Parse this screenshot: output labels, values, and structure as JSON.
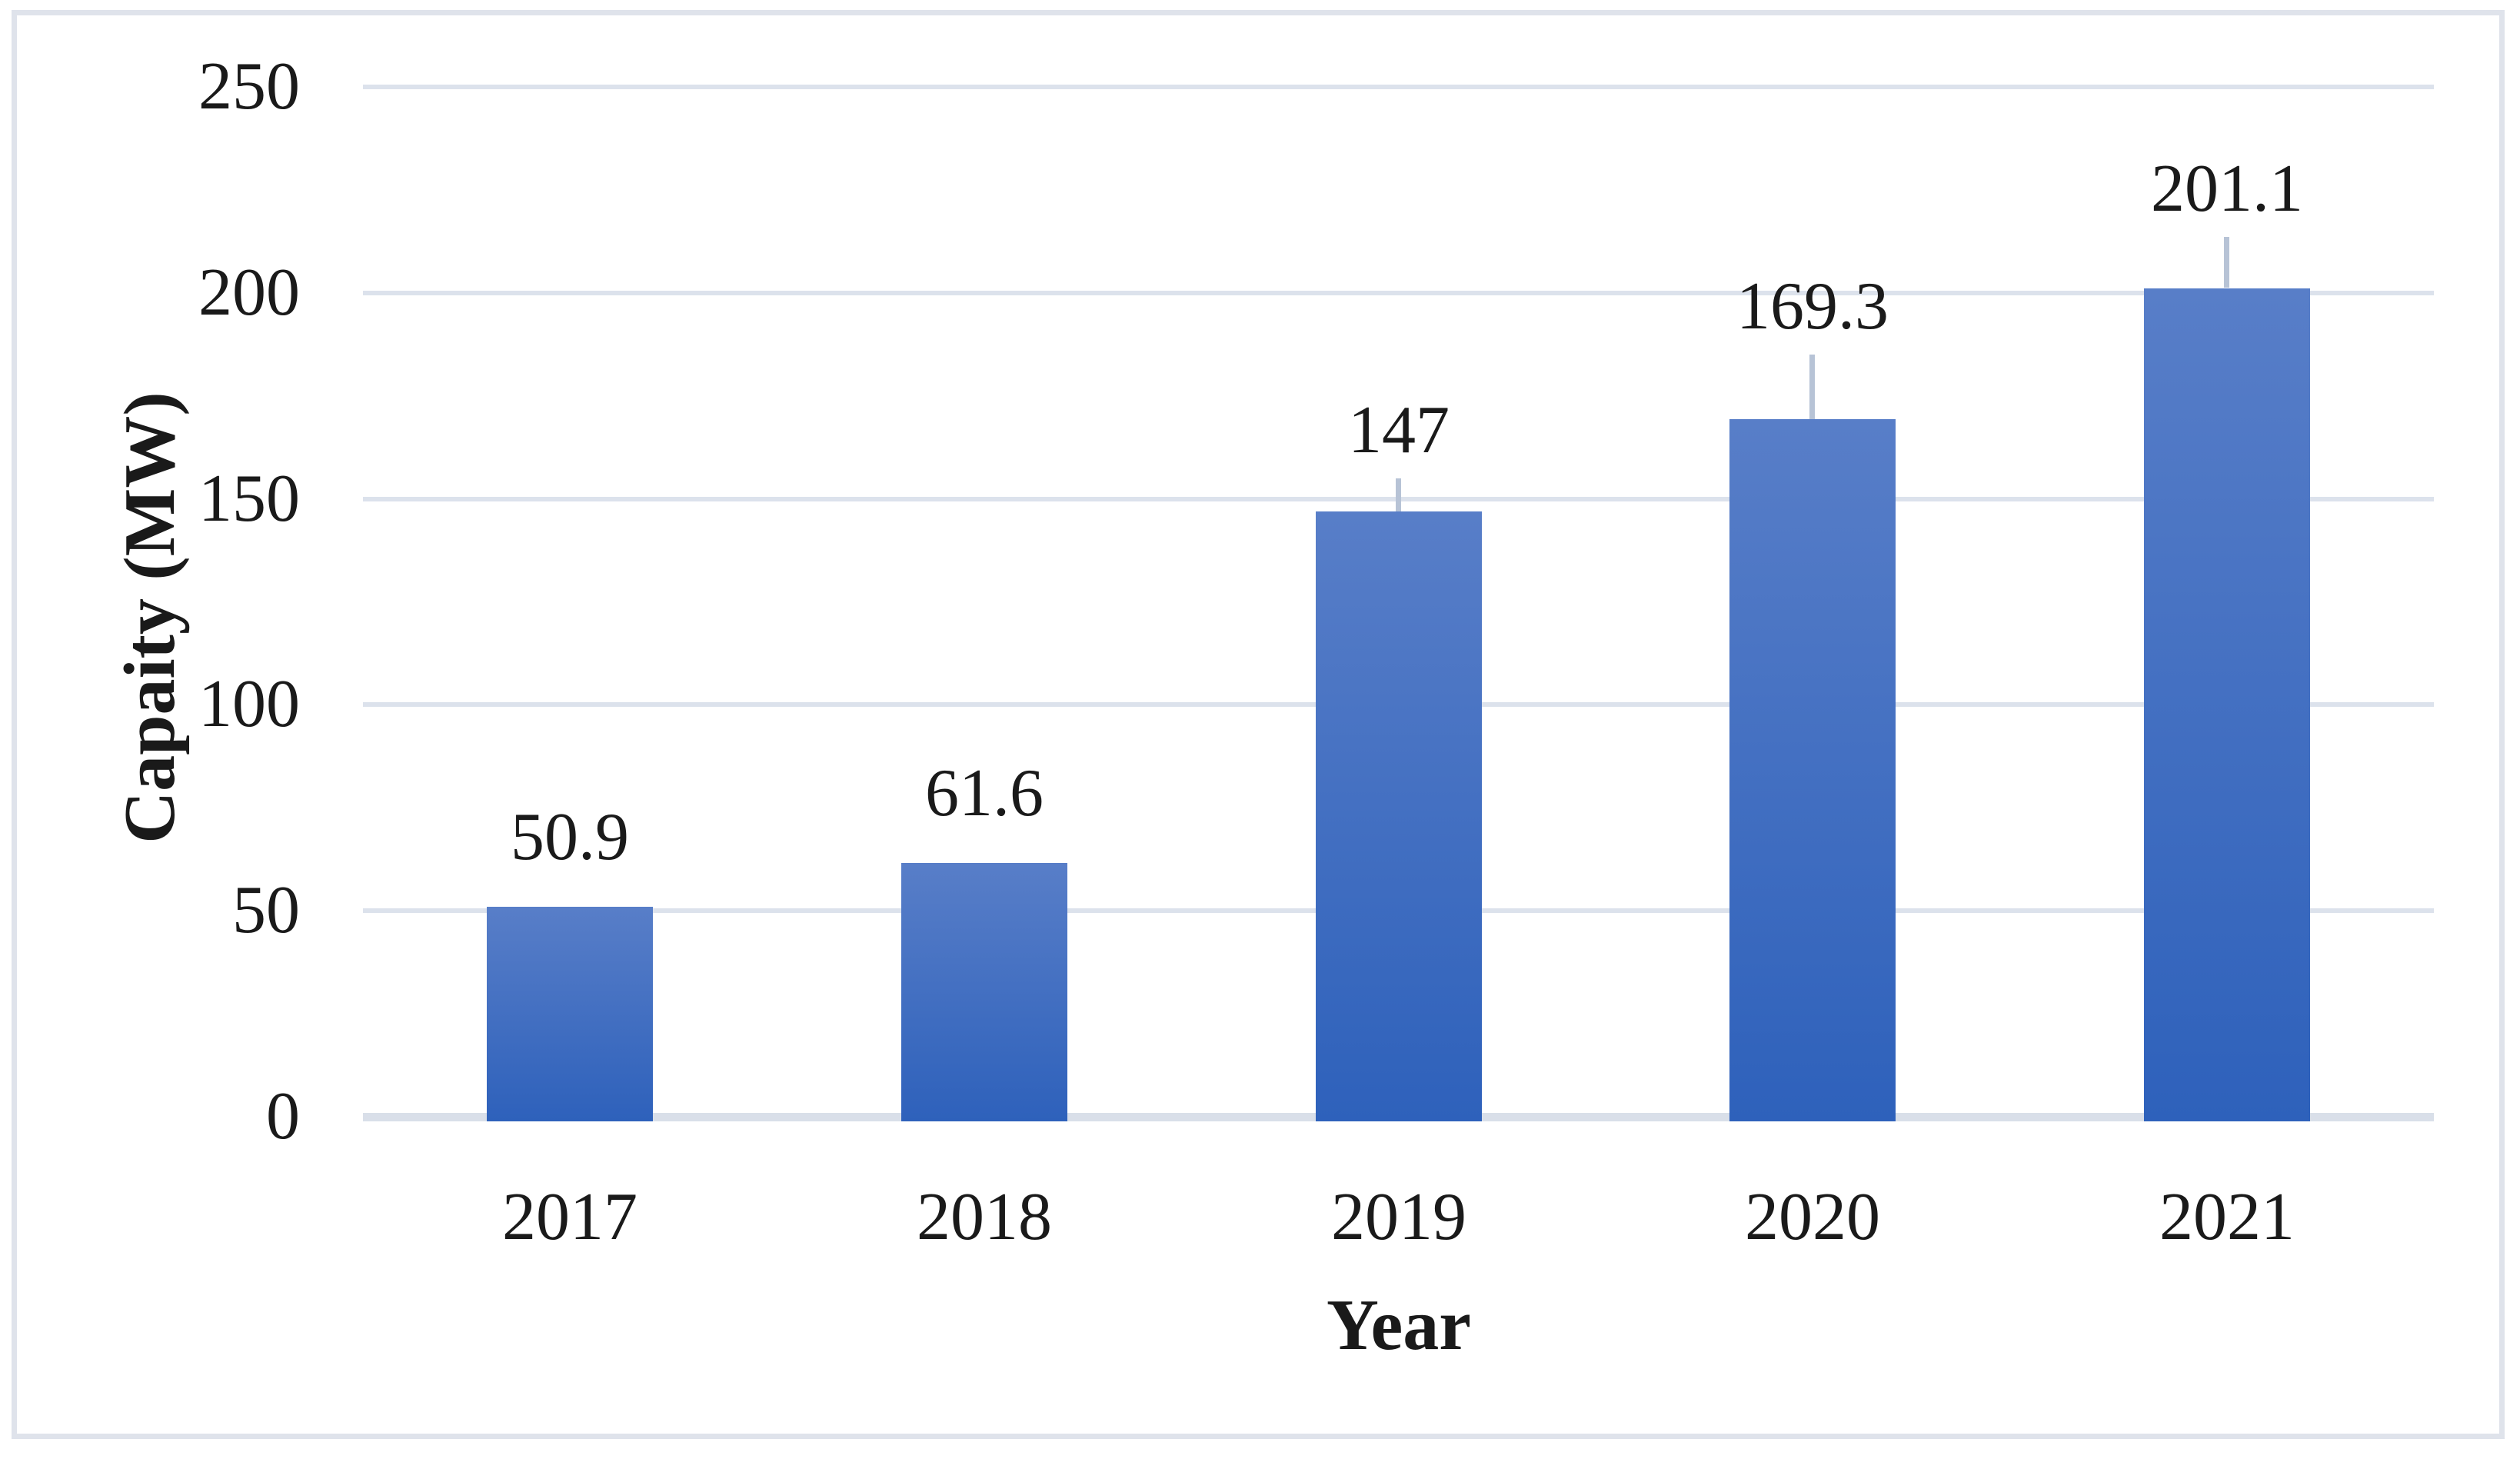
{
  "chart_data": {
    "type": "bar",
    "title": "",
    "categories": [
      "2017",
      "2018",
      "2019",
      "2020",
      "2021"
    ],
    "values": [
      50.9,
      61.6,
      147,
      169.3,
      201.1
    ],
    "data_labels": [
      "50.9",
      "61.6",
      "147",
      "169.3",
      "201.1"
    ],
    "error_plus": [
      0,
      0,
      8,
      15.7,
      12.4
    ],
    "xlabel": "Year",
    "ylabel": "Capaity (MW)",
    "y_ticks": [
      0,
      50,
      100,
      150,
      200,
      250
    ],
    "ylim": [
      0,
      250
    ],
    "grid": true,
    "legend_position": "none",
    "colors": {
      "bar_gradient_top": "#587EC8",
      "bar_gradient_bottom": "#2E61BB",
      "gridline": "#DCE2EC",
      "axis_baseline": "#D9DFE9",
      "error_whisker": "#B7C3D6",
      "frame_border": "#DFE3EB",
      "text": "#1A1A1A"
    }
  }
}
